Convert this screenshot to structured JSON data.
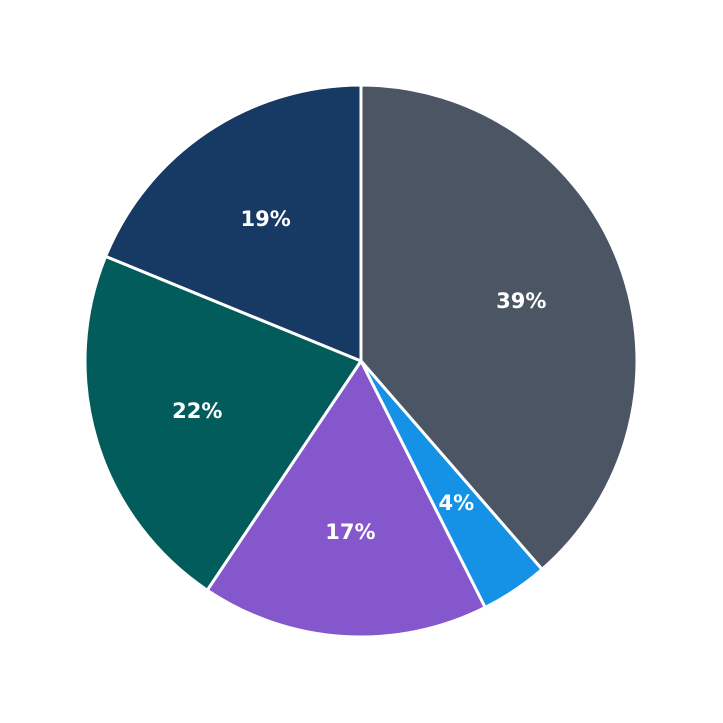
{
  "chart_data": {
    "type": "pie",
    "title": "",
    "start_angle": "top (12 o'clock), clockwise",
    "slices": [
      {
        "label": "39%",
        "value": 39,
        "color": "#4b5563"
      },
      {
        "label": "4%",
        "value": 4,
        "color": "#1592e6"
      },
      {
        "label": "17%",
        "value": 17,
        "color": "#8457cc"
      },
      {
        "label": "22%",
        "value": 22,
        "color": "#035c5c"
      },
      {
        "label": "19%",
        "value": 19,
        "color": "#163a63"
      }
    ],
    "legend": "none",
    "slice_border_color": "#ffffff"
  }
}
